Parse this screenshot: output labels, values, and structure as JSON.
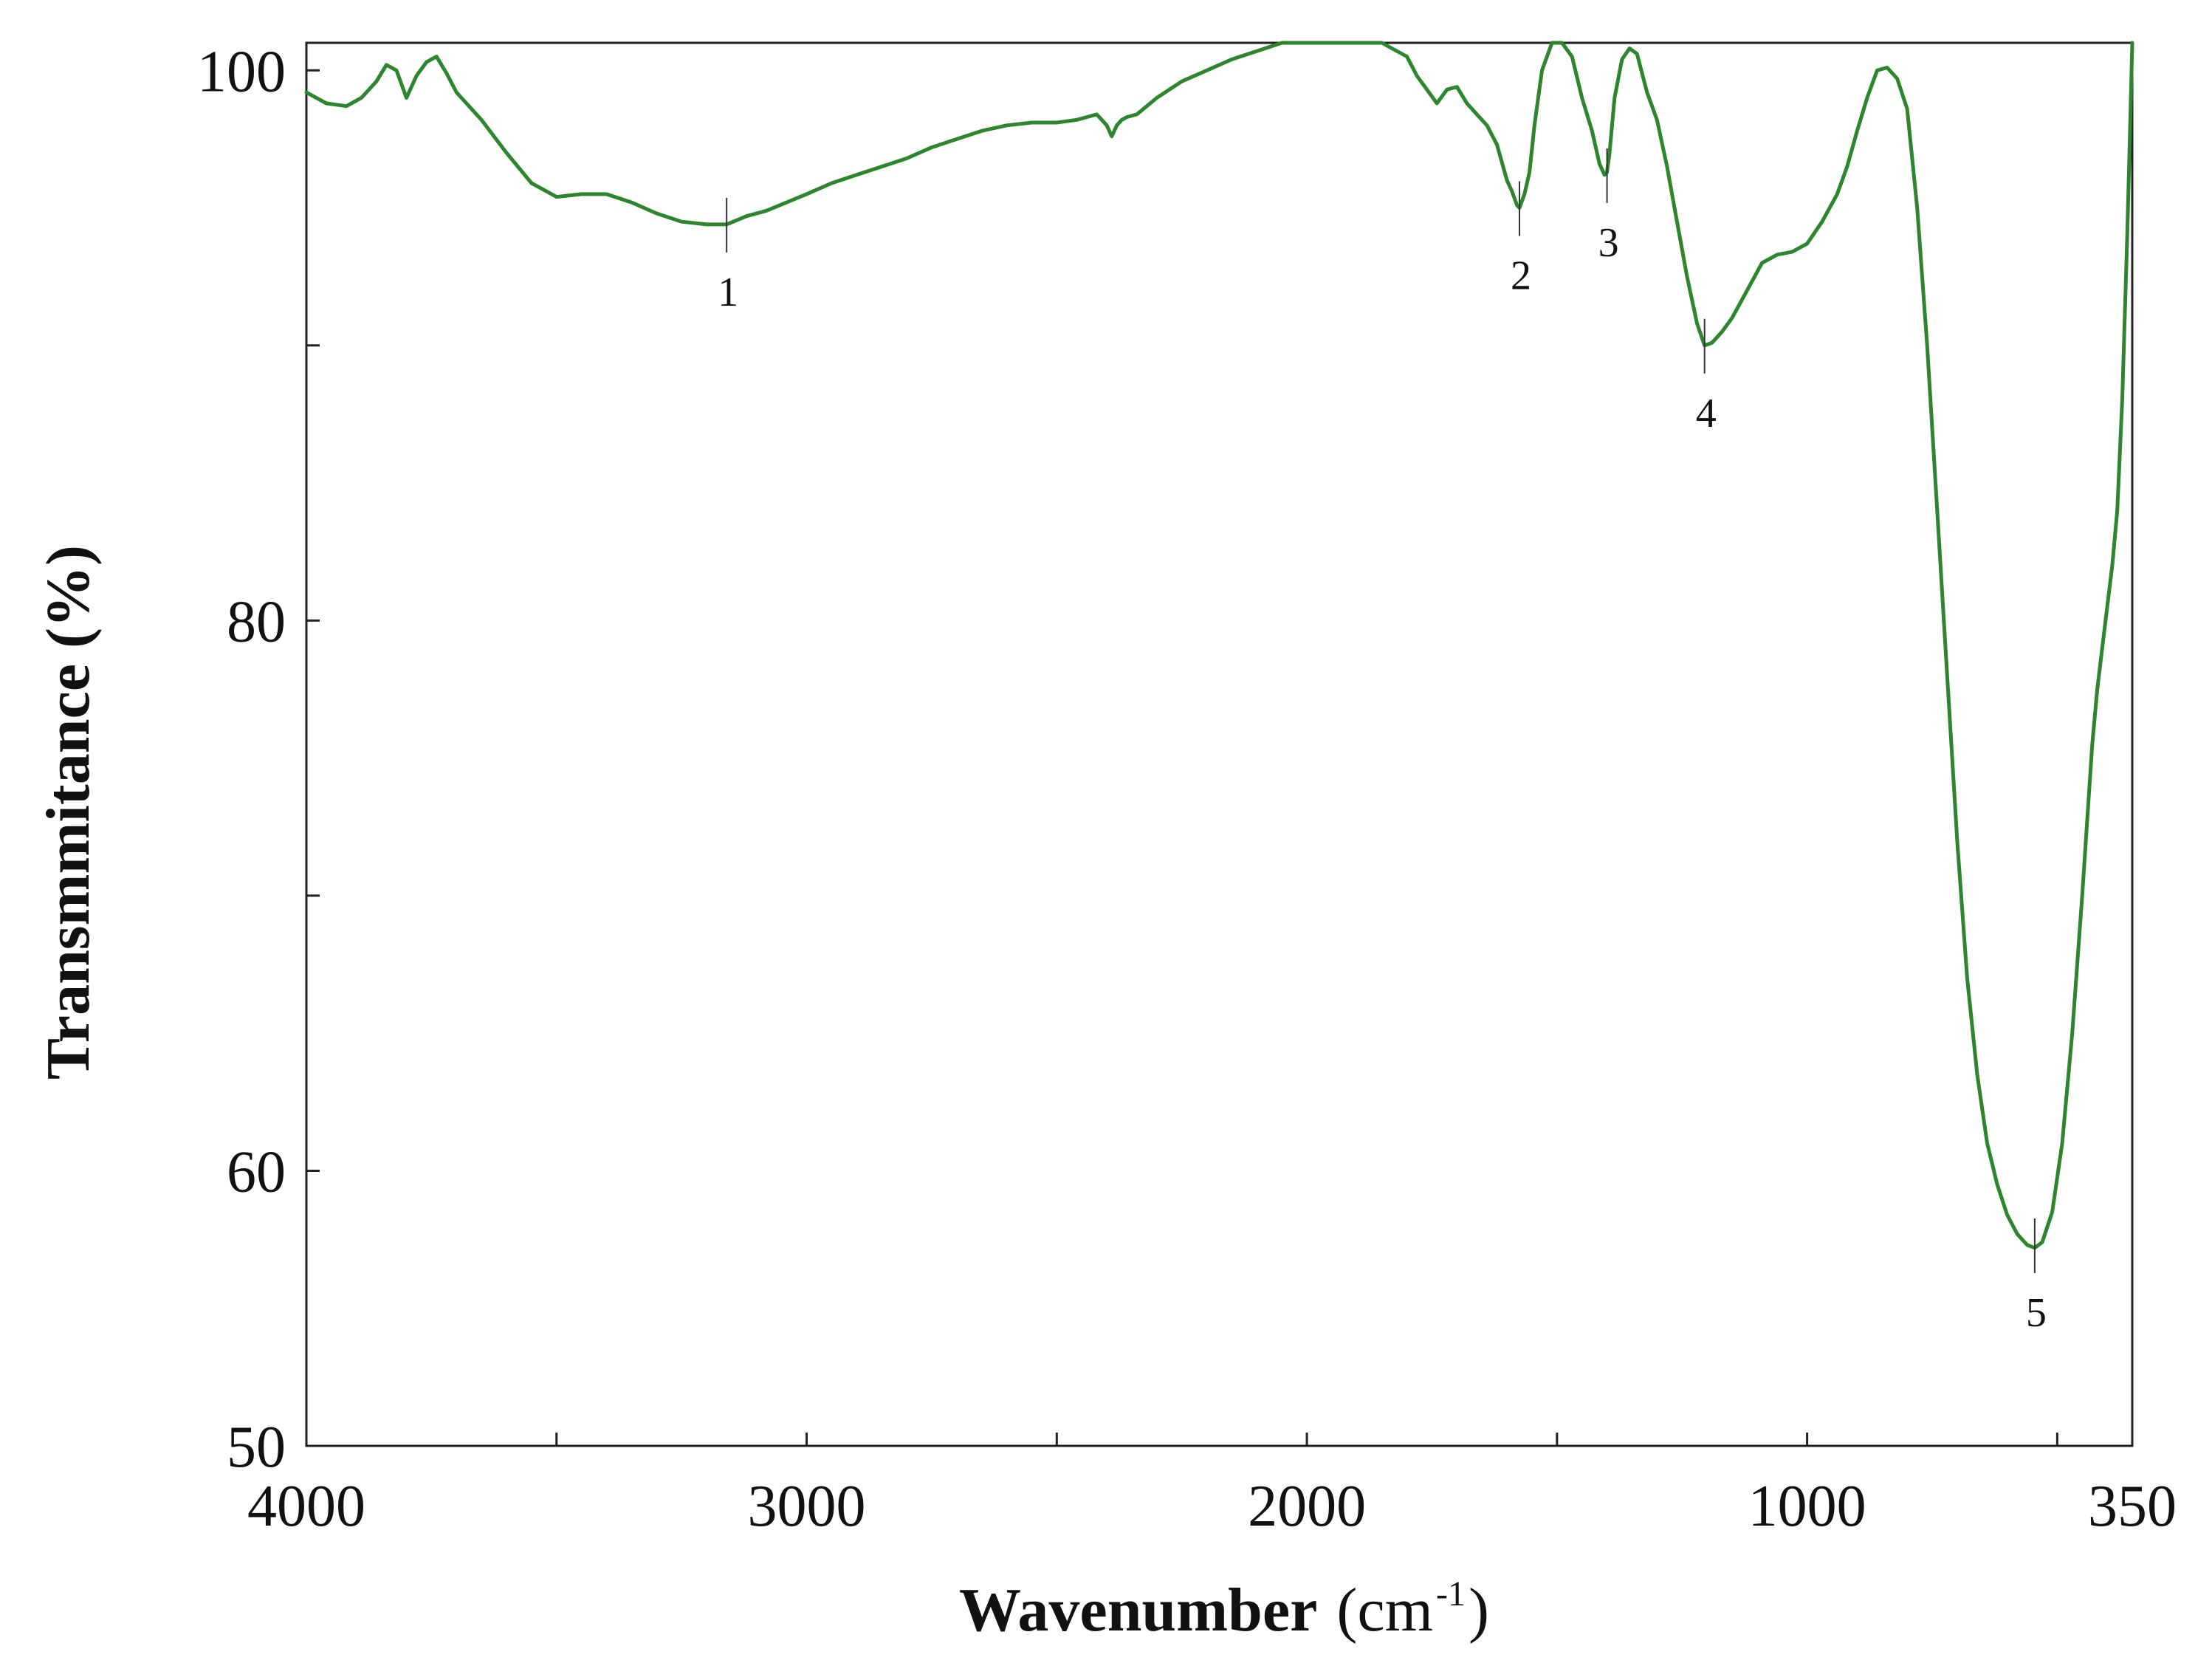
{
  "chart_data": {
    "type": "line",
    "title": "",
    "xlabel": "Wavenumber",
    "xlabel_unit_prefix": "(cm",
    "xlabel_unit_sup": "-1",
    "xlabel_unit_suffix": ")",
    "ylabel": "Transmmitance (%)",
    "xlim": [
      4000,
      350
    ],
    "ylim": [
      50,
      101
    ],
    "x_reversed": true,
    "grid": false,
    "legend": "none",
    "line_color": "#2d862d",
    "x_ticks": [
      {
        "value": 4000,
        "label": "4000"
      },
      {
        "value": 3000,
        "label": "3000"
      },
      {
        "value": 2000,
        "label": "2000"
      },
      {
        "value": 1000,
        "label": "1000"
      },
      {
        "value": 350,
        "label": "350"
      }
    ],
    "x_minor_ticks": [
      3500,
      2500,
      1500,
      500
    ],
    "y_ticks": [
      {
        "value": 50,
        "label": "50"
      },
      {
        "value": 60,
        "label": "60"
      },
      {
        "value": 80,
        "label": "80"
      },
      {
        "value": 100,
        "label": "100"
      }
    ],
    "y_minor_ticks": [
      70,
      90
    ],
    "peak_labels": [
      {
        "label": "1",
        "x": 3160,
        "y": 94.4
      },
      {
        "label": "2",
        "x": 1575,
        "y": 95.0
      },
      {
        "label": "3",
        "x": 1400,
        "y": 96.2
      },
      {
        "label": "4",
        "x": 1205,
        "y": 90.0
      },
      {
        "label": "5",
        "x": 545,
        "y": 57.3
      }
    ],
    "series": [
      {
        "x": [
          4000,
          3960,
          3920,
          3890,
          3860,
          3840,
          3820,
          3800,
          3780,
          3760,
          3740,
          3720,
          3700,
          3680,
          3650,
          3600,
          3550,
          3500,
          3450,
          3400,
          3350,
          3300,
          3250,
          3200,
          3160,
          3120,
          3080,
          3040,
          3000,
          2950,
          2900,
          2850,
          2800,
          2750,
          2700,
          2650,
          2600,
          2550,
          2500,
          2460,
          2420,
          2400,
          2390,
          2380,
          2370,
          2360,
          2340,
          2320,
          2300,
          2250,
          2200,
          2150,
          2100,
          2050,
          2000,
          1970,
          1950,
          1920,
          1900,
          1880,
          1850,
          1830,
          1800,
          1780,
          1760,
          1740,
          1720,
          1700,
          1680,
          1660,
          1640,
          1620,
          1600,
          1590,
          1580,
          1575,
          1565,
          1555,
          1545,
          1530,
          1510,
          1490,
          1470,
          1450,
          1430,
          1415,
          1405,
          1400,
          1395,
          1385,
          1370,
          1355,
          1340,
          1320,
          1300,
          1280,
          1260,
          1240,
          1220,
          1205,
          1190,
          1170,
          1150,
          1120,
          1090,
          1060,
          1030,
          1000,
          970,
          940,
          920,
          900,
          880,
          860,
          840,
          820,
          800,
          780,
          760,
          740,
          720,
          700,
          680,
          660,
          640,
          620,
          600,
          580,
          560,
          545,
          530,
          510,
          490,
          470,
          450,
          430,
          420,
          410,
          400,
          390,
          380,
          370,
          360,
          352,
          350
        ],
        "y": [
          99.2,
          98.8,
          98.7,
          99.0,
          99.6,
          100.2,
          100.0,
          99.0,
          99.8,
          100.3,
          100.5,
          99.9,
          99.2,
          98.8,
          98.2,
          97.0,
          95.9,
          95.4,
          95.5,
          95.5,
          95.2,
          94.8,
          94.5,
          94.4,
          94.4,
          94.7,
          94.9,
          95.2,
          95.5,
          95.9,
          96.2,
          96.5,
          96.8,
          97.2,
          97.5,
          97.8,
          98.0,
          98.1,
          98.1,
          98.2,
          98.4,
          98.0,
          97.6,
          98.0,
          98.2,
          98.3,
          98.4,
          98.7,
          99.0,
          99.6,
          100.0,
          100.4,
          100.7,
          101.0,
          101.3,
          101.3,
          101.2,
          101.1,
          101.0,
          101.0,
          101.1,
          100.8,
          100.5,
          99.8,
          99.3,
          98.8,
          99.3,
          99.4,
          98.8,
          98.4,
          98.0,
          97.3,
          96.0,
          95.6,
          95.1,
          95.0,
          95.5,
          96.3,
          98.0,
          100.0,
          101.3,
          101.5,
          100.5,
          99.0,
          97.8,
          96.6,
          96.2,
          96.3,
          97.0,
          99.0,
          100.4,
          100.8,
          100.6,
          99.2,
          98.2,
          96.5,
          94.5,
          92.5,
          90.8,
          90.0,
          90.1,
          90.5,
          91.0,
          92.0,
          93.0,
          93.3,
          93.4,
          93.7,
          94.5,
          95.5,
          96.5,
          97.8,
          99.0,
          100.0,
          100.1,
          99.7,
          98.6,
          95.0,
          90.0,
          84.0,
          78.0,
          72.0,
          67.0,
          63.5,
          61.0,
          59.5,
          58.4,
          57.7,
          57.3,
          57.2,
          57.4,
          58.5,
          61.0,
          65.0,
          70.0,
          75.5,
          77.5,
          79.0,
          80.5,
          82.0,
          84.0,
          88.0,
          94.0,
          99.5,
          101.5
        ]
      }
    ]
  }
}
